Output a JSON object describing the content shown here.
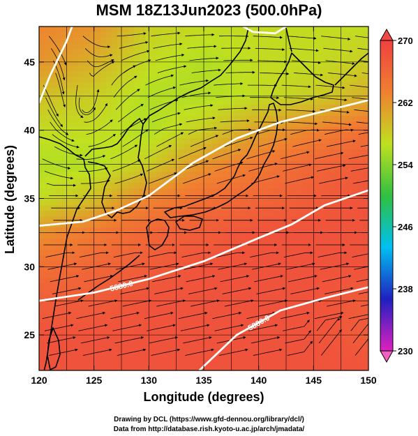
{
  "title": "MSM 18Z13Jun2023 (500.0hPa)",
  "credits": [
    "Drawing by DCL (https://www.gfd-dennou.org/library/dcl/)",
    "Data from http://database.rish.kyoto-u.ac.jp/arch/jmadata/"
  ],
  "axes": {
    "xlabel": "Longitude (degrees)",
    "ylabel": "Latitude  (degrees)",
    "xlim": [
      120,
      150
    ],
    "ylim": [
      22.4,
      47.6
    ],
    "xticks": [
      "120",
      "125",
      "130",
      "135",
      "140",
      "145",
      "150"
    ],
    "yticks": [
      "25",
      "30",
      "35",
      "40",
      "45"
    ]
  },
  "colorbar": {
    "min": 230,
    "max": 270,
    "labels": [
      "230",
      "238",
      "246",
      "254",
      "262",
      "270"
    ],
    "colors": [
      "#e020c0",
      "#2020c0",
      "#00c0f0",
      "#30c040",
      "#c0e020",
      "#f08030",
      "#f04040"
    ]
  },
  "contours": [
    {
      "label": "5880.0"
    },
    {
      "label": "5880.0"
    }
  ],
  "chart_data": {
    "type": "heatmap",
    "title": "MSM 18Z13Jun2023 (500.0hPa)",
    "xlabel": "Longitude (degrees)",
    "ylabel": "Latitude  (degrees)",
    "xlim": [
      120,
      150
    ],
    "ylim": [
      22.4,
      47.6
    ],
    "colorbar_range": [
      230,
      270
    ],
    "temperature_field": [
      {
        "lat": 47.5,
        "values": [
          263,
          262,
          258,
          257,
          257,
          257,
          257
        ]
      },
      {
        "lat": 45,
        "values": [
          262,
          260,
          257,
          256,
          257,
          257,
          258
        ]
      },
      {
        "lat": 42.5,
        "values": [
          259,
          258,
          256,
          256,
          257,
          258,
          260
        ]
      },
      {
        "lat": 40,
        "values": [
          257,
          257,
          256,
          258,
          261,
          263,
          265
        ]
      },
      {
        "lat": 37.5,
        "values": [
          256,
          256,
          258,
          262,
          264,
          266,
          267
        ]
      },
      {
        "lat": 35,
        "values": [
          257,
          259,
          263,
          265,
          266,
          267,
          268
        ]
      },
      {
        "lat": 32.5,
        "values": [
          262,
          264,
          266,
          267,
          268,
          268,
          268
        ]
      },
      {
        "lat": 30,
        "values": [
          265,
          266,
          267,
          268,
          268,
          268,
          268
        ]
      },
      {
        "lat": 27.5,
        "values": [
          267,
          267,
          268,
          268,
          268,
          268,
          267
        ]
      },
      {
        "lat": 25,
        "values": [
          268,
          268,
          268,
          268,
          268,
          268,
          267
        ]
      },
      {
        "lat": 22.5,
        "values": [
          268,
          268,
          268,
          268,
          268,
          268,
          268
        ]
      }
    ],
    "field_lons": [
      120,
      125,
      130,
      135,
      140,
      145,
      150
    ],
    "geopotential_contours": [
      {
        "label": "5880.0",
        "points": [
          [
            120,
            27.5
          ],
          [
            125,
            28.1
          ],
          [
            130,
            29.1
          ],
          [
            135,
            30.4
          ],
          [
            140,
            32.1
          ],
          [
            143,
            33.1
          ],
          [
            146,
            34.5
          ],
          [
            150,
            35.6
          ]
        ]
      },
      {
        "label": "5880.0",
        "points": [
          [
            134.6,
            22.4
          ],
          [
            138,
            25.0
          ],
          [
            142,
            26.8
          ],
          [
            146,
            27.7
          ],
          [
            150,
            28.5
          ]
        ]
      },
      {
        "label": "",
        "points": [
          [
            120,
            33.0
          ],
          [
            124,
            33.3
          ],
          [
            127,
            34.1
          ],
          [
            130,
            35.2
          ],
          [
            134,
            37.6
          ],
          [
            138,
            39.4
          ],
          [
            142,
            40.6
          ],
          [
            146,
            41.4
          ],
          [
            150,
            42.2
          ]
        ]
      },
      {
        "label": "",
        "points": [
          [
            120,
            42.0
          ],
          [
            121,
            44.0
          ],
          [
            122.5,
            46.5
          ],
          [
            123,
            47.6
          ]
        ]
      },
      {
        "label": "",
        "points": [
          [
            138.6,
            47.6
          ],
          [
            139.5,
            47.2
          ],
          [
            141.5,
            47.1
          ],
          [
            142.5,
            47.6
          ]
        ]
      }
    ]
  }
}
